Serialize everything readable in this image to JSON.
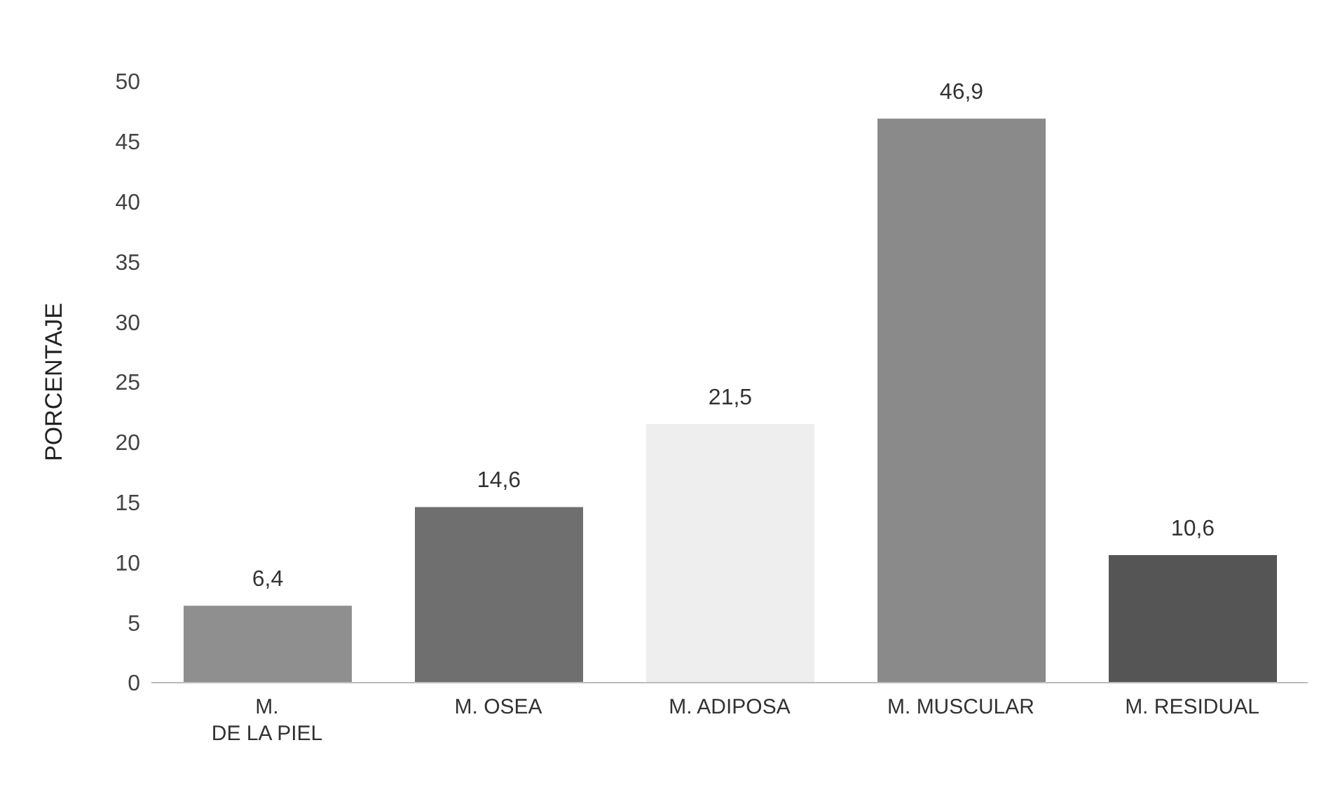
{
  "chart_data": {
    "type": "bar",
    "ylabel": "PORCENTAJE",
    "categories": [
      "M. DE LA PIEL",
      "M. OSEA",
      "M. ADIPOSA",
      "M. MUSCULAR",
      "M. RESIDUAL"
    ],
    "values": [
      6.4,
      14.6,
      21.5,
      46.9,
      10.6
    ],
    "colors": [
      "#8f8f8f",
      "#6f6f6f",
      "#eeeeee",
      "#8a8a8a",
      "#555555"
    ],
    "value_labels": [
      "6,4",
      "14,6",
      "21,5",
      "46,9",
      "10,6"
    ],
    "ylim": [
      0,
      50
    ],
    "yticks": [
      0,
      5,
      10,
      15,
      20,
      25,
      30,
      35,
      40,
      45,
      50
    ],
    "grid": false,
    "legend": false
  }
}
